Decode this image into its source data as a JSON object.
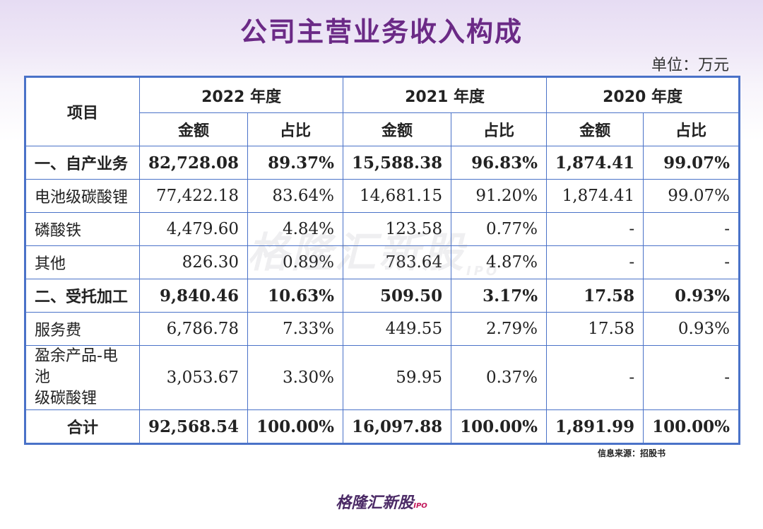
{
  "title": "公司主营业务收入构成",
  "unit": "单位：万元",
  "table": {
    "item_header": "项目",
    "years": [
      "2022 年度",
      "2021 年度",
      "2020 年度"
    ],
    "sub_headers": [
      "金额",
      "占比",
      "金额",
      "占比",
      "金额",
      "占比"
    ],
    "rows": [
      {
        "label": "一、自产业务",
        "cells": [
          "82,728.08",
          "89.37%",
          "15,588.38",
          "96.83%",
          "1,874.41",
          "99.07%"
        ]
      },
      {
        "label": "电池级碳酸锂",
        "cells": [
          "77,422.18",
          "83.64%",
          "14,681.15",
          "91.20%",
          "1,874.41",
          "99.07%"
        ]
      },
      {
        "label": "磷酸铁",
        "cells": [
          "4,479.60",
          "4.84%",
          "123.58",
          "0.77%",
          "-",
          "-"
        ]
      },
      {
        "label": "其他",
        "cells": [
          "826.30",
          "0.89%",
          "783.64",
          "4.87%",
          "-",
          "-"
        ]
      },
      {
        "label": "二、受托加工",
        "cells": [
          "9,840.46",
          "10.63%",
          "509.50",
          "3.17%",
          "17.58",
          "0.93%"
        ]
      },
      {
        "label": "服务费",
        "cells": [
          "6,786.78",
          "7.33%",
          "449.55",
          "2.79%",
          "17.58",
          "0.93%"
        ]
      },
      {
        "label_line1": "盈余产品-电池",
        "label_line2": "级碳酸锂",
        "cells": [
          "3,053.67",
          "3.30%",
          "59.95",
          "0.37%",
          "-",
          "-"
        ]
      },
      {
        "label": "合计",
        "cells": [
          "92,568.54",
          "100.00%",
          "16,097.88",
          "100.00%",
          "1,891.99",
          "100.00%"
        ]
      }
    ]
  },
  "watermark": {
    "text": "格隆汇新股",
    "sub": "IPO"
  },
  "source": "信息来源：招股书",
  "logo": {
    "text": "格隆汇新股",
    "sub": "IPO"
  }
}
